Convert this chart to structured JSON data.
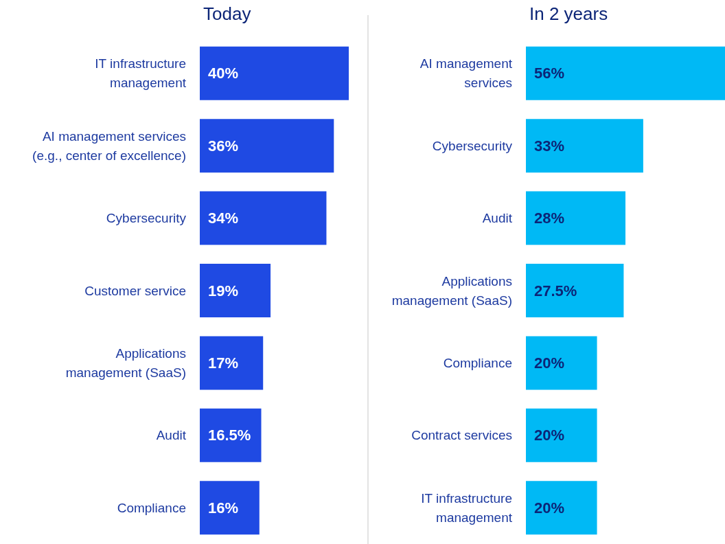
{
  "chart_data": [
    {
      "type": "bar",
      "orientation": "horizontal",
      "title": "Today",
      "color": "#1f4ae3",
      "categories": [
        "IT infrastructure\nmanagement",
        "AI management services\n(e.g., center of excellence)",
        "Cybersecurity",
        "Customer service",
        "Applications\nmanagement (SaaS)",
        "Audit",
        "Compliance"
      ],
      "values": [
        40,
        36,
        34,
        19,
        17,
        16.5,
        16
      ],
      "value_labels": [
        "40%",
        "36%",
        "34%",
        "19%",
        "17%",
        "16.5%",
        "16%"
      ]
    },
    {
      "type": "bar",
      "orientation": "horizontal",
      "title": "In 2 years",
      "color": "#00b9f5",
      "categories": [
        "AI management\nservices",
        "Cybersecurity",
        "Audit",
        "Applications\nmanagement (SaaS)",
        "Compliance",
        "Contract services",
        "IT infrastructure\nmanagement"
      ],
      "values": [
        56,
        33,
        28,
        27.5,
        20,
        20,
        20
      ],
      "value_labels": [
        "56%",
        "33%",
        "28%",
        "27.5%",
        "20%",
        "20%",
        "20%"
      ]
    }
  ]
}
